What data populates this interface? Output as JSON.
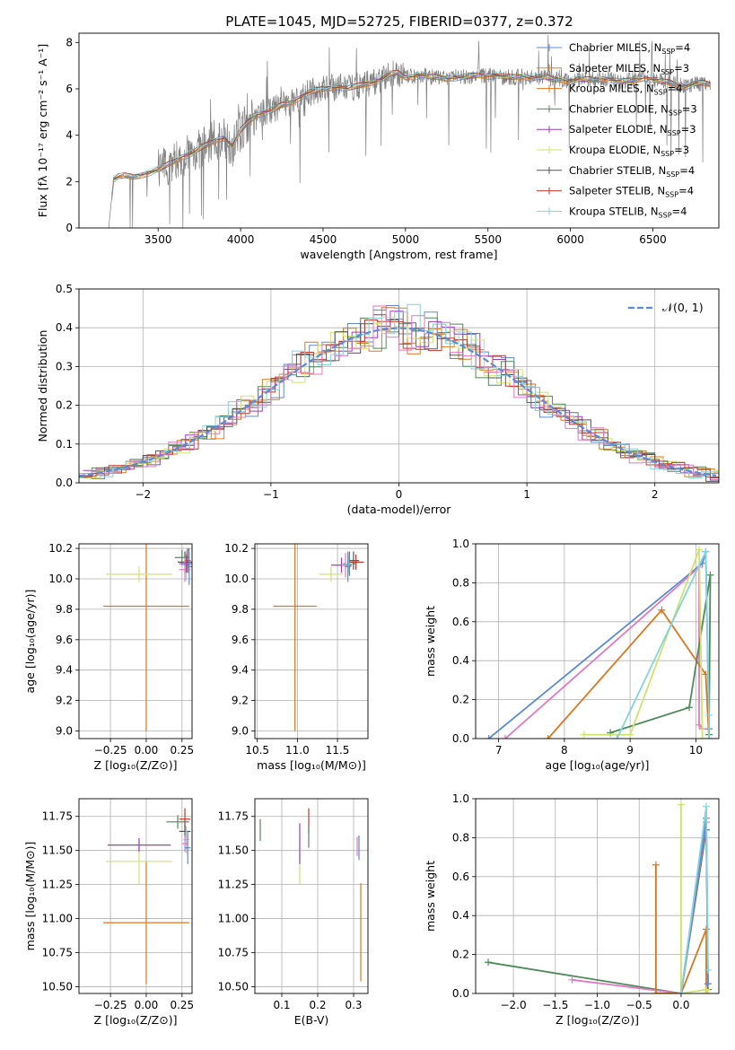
{
  "page_title": "PLATE=1045, MJD=52725, FIBERID=0377, z=0.372",
  "colors": {
    "spectrum": "#808080",
    "chabrier_miles": "#5b8bd6",
    "salpeter_miles": "#e67e22",
    "kroupa_miles": "#e0741a",
    "chabrier_elodie": "#4e8a5a",
    "salpeter_elodie": "#9b3fbf",
    "kroupa_elodie": "#cfe36a",
    "chabrier_stelib": "#555555",
    "salpeter_stelib": "#c0392b",
    "kroupa_stelib": "#7fd4e0",
    "pink": "#e377c2",
    "normal_curve": "#5b8bd6"
  },
  "legend_entries": [
    {
      "label": "Chabrier MILES, N",
      "sub": "SSP",
      "suffix": "=4",
      "color": "#5b8bd6"
    },
    {
      "label": "Salpeter MILES, N",
      "sub": "SSP",
      "suffix": "=3",
      "color": "#e67e22"
    },
    {
      "label": "Kroupa MILES, N",
      "sub": "SSP",
      "suffix": "=4",
      "color": "#e0741a"
    },
    {
      "label": "Chabrier ELODIE, N",
      "sub": "SSP",
      "suffix": "=3",
      "color": "#4e8a5a"
    },
    {
      "label": "Salpeter ELODIE, N",
      "sub": "SSP",
      "suffix": "=3",
      "color": "#9b3fbf"
    },
    {
      "label": "Kroupa ELODIE, N",
      "sub": "SSP",
      "suffix": "=3",
      "color": "#cfe36a"
    },
    {
      "label": "Chabrier STELIB, N",
      "sub": "SSP",
      "suffix": "=4",
      "color": "#555555"
    },
    {
      "label": "Salpeter STELIB, N",
      "sub": "SSP",
      "suffix": "=4",
      "color": "#c0392b"
    },
    {
      "label": "Kroupa STELIB, N",
      "sub": "SSP",
      "suffix": "=4",
      "color": "#7fd4e0"
    }
  ],
  "chart_data": [
    {
      "id": "spectrum",
      "type": "line",
      "title": "PLATE=1045, MJD=52725, FIBERID=0377, z=0.372",
      "xlabel": "wavelength [Angstrom, rest frame]",
      "ylabel": "Flux [fλ 10⁻¹⁷ erg cm⁻² s⁻¹ A⁻¹]",
      "xlim": [
        3020,
        6900
      ],
      "ylim": [
        0,
        8.4
      ],
      "xticks": [
        3500,
        4000,
        4500,
        5000,
        5500,
        6000,
        6500
      ],
      "yticks": [
        0,
        2,
        4,
        6,
        8
      ],
      "grid": false,
      "legend": "top-right",
      "series": [
        {
          "name": "data",
          "x": [
            3200,
            3230,
            3260,
            3300,
            3350,
            3400,
            3450,
            3500,
            3550,
            3600,
            3650,
            3700,
            3750,
            3800,
            3850,
            3900,
            3950,
            4000,
            4050,
            4100,
            4150,
            4200,
            4250,
            4300,
            4350,
            4400,
            4450,
            4500,
            4550,
            4600,
            4650,
            4700,
            4750,
            4800,
            4850,
            4900,
            4950,
            5000,
            5050,
            5100,
            5150,
            5200,
            5250,
            5300,
            5350,
            5400,
            5450,
            5500,
            5550,
            5600,
            5650,
            5700,
            5750,
            5800,
            5850,
            5900,
            5950,
            6000,
            6050,
            6100,
            6150,
            6200,
            6250,
            6300,
            6350,
            6400,
            6450,
            6500,
            6550,
            6600,
            6650,
            6700,
            6750,
            6800,
            6850
          ],
          "y": [
            0,
            2.1,
            2.2,
            2.25,
            2.2,
            2.3,
            2.4,
            2.5,
            2.7,
            2.9,
            3.1,
            3.2,
            3.4,
            3.6,
            3.8,
            3.9,
            3.5,
            4.2,
            4.6,
            4.9,
            5.0,
            5.1,
            5.3,
            5.4,
            5.6,
            5.8,
            5.9,
            6.0,
            6.05,
            6.1,
            6.0,
            6.1,
            6.2,
            6.3,
            6.4,
            6.6,
            6.7,
            6.5,
            6.55,
            6.6,
            6.5,
            6.5,
            6.45,
            6.5,
            6.5,
            6.55,
            6.6,
            6.55,
            6.6,
            6.5,
            6.5,
            6.55,
            6.5,
            6.5,
            6.5,
            6.4,
            6.4,
            6.35,
            6.4,
            6.4,
            6.4,
            6.45,
            6.4,
            6.3,
            6.35,
            6.4,
            6.5,
            6.4,
            6.3,
            6.3,
            6.2,
            6.1,
            6.2,
            6.25,
            6.2
          ]
        }
      ]
    },
    {
      "id": "residuals",
      "type": "line",
      "xlabel": "(data-model)/error",
      "ylabel": "Normed distribution",
      "xlim": [
        -2.5,
        2.5
      ],
      "ylim": [
        0,
        0.5
      ],
      "xticks": [
        -2,
        -1,
        0,
        1,
        2
      ],
      "yticks": [
        0.0,
        0.1,
        0.2,
        0.3,
        0.4,
        0.5
      ],
      "grid": true,
      "legend": "top-right",
      "series": [
        {
          "name": "𝒩(0, 1)",
          "dist": "normal",
          "mu": 0,
          "sigma": 1
        }
      ]
    },
    {
      "id": "age_vs_Z",
      "type": "scatter",
      "xlabel": "Z [log₁₀(Z/Z⊙)]",
      "ylabel": "age  [log₁₀(age/yr)]",
      "xlim": [
        -0.47,
        0.32
      ],
      "ylim": [
        8.95,
        10.23
      ],
      "xticks": [
        -0.25,
        0.0,
        0.25
      ],
      "yticks": [
        9.0,
        9.2,
        9.4,
        9.6,
        9.8,
        10.0,
        10.2
      ],
      "grid": true,
      "points": [
        {
          "x": 0.0,
          "y": 9.82,
          "xerr": 0.3,
          "yerr": 0.82,
          "color": "#e0741a"
        },
        {
          "x": -0.05,
          "y": 10.03,
          "xerr": 0.23,
          "yerr": 0.05,
          "color": "#cfe36a"
        },
        {
          "x": 0.25,
          "y": 10.14,
          "xerr": 0.05,
          "yerr": 0.05,
          "color": "#4e8a5a"
        },
        {
          "x": 0.27,
          "y": 10.11,
          "xerr": 0.05,
          "yerr": 0.07,
          "color": "#555555"
        },
        {
          "x": 0.28,
          "y": 10.09,
          "xerr": 0.03,
          "yerr": 0.1,
          "color": "#7fd4e0"
        },
        {
          "x": 0.29,
          "y": 10.12,
          "xerr": 0.02,
          "yerr": 0.08,
          "color": "#c0392b"
        },
        {
          "x": 0.27,
          "y": 10.06,
          "xerr": 0.04,
          "yerr": 0.08,
          "color": "#e377c2"
        },
        {
          "x": 0.28,
          "y": 10.1,
          "xerr": 0.05,
          "yerr": 0.06,
          "color": "#9b3fbf"
        },
        {
          "x": 0.3,
          "y": 10.08,
          "xerr": 0.02,
          "yerr": 0.12,
          "color": "#5b8bd6"
        }
      ]
    },
    {
      "id": "age_vs_mass",
      "type": "scatter",
      "xlabel": "mass [log₁₀(M/M⊙)]",
      "ylabel": "",
      "xlim": [
        10.47,
        11.88
      ],
      "ylim": [
        8.95,
        10.23
      ],
      "xticks": [
        10.5,
        11.0,
        11.5
      ],
      "yticks": [
        9.0,
        9.2,
        9.4,
        9.6,
        9.8,
        10.0,
        10.2
      ],
      "grid": true,
      "points": [
        {
          "x": 10.97,
          "y": 9.82,
          "xerr": 0.27,
          "yerr": 0.82,
          "color": "#e0741a"
        },
        {
          "x": 11.42,
          "y": 10.03,
          "xerr": 0.15,
          "yerr": 0.05,
          "color": "#cfe36a"
        },
        {
          "x": 11.55,
          "y": 10.09,
          "xerr": 0.13,
          "yerr": 0.05,
          "color": "#9b3fbf"
        },
        {
          "x": 11.65,
          "y": 10.1,
          "xerr": 0.08,
          "yerr": 0.08,
          "color": "#4e8a5a"
        },
        {
          "x": 11.7,
          "y": 10.12,
          "xerr": 0.07,
          "yerr": 0.06,
          "color": "#555555"
        },
        {
          "x": 11.73,
          "y": 10.11,
          "xerr": 0.1,
          "yerr": 0.05,
          "color": "#c0392b"
        },
        {
          "x": 11.6,
          "y": 10.09,
          "xerr": 0.05,
          "yerr": 0.08,
          "color": "#e377c2"
        },
        {
          "x": 11.64,
          "y": 10.1,
          "xerr": 0.05,
          "yerr": 0.06,
          "color": "#7fd4e0"
        },
        {
          "x": 11.63,
          "y": 10.08,
          "xerr": 0.04,
          "yerr": 0.1,
          "color": "#5b8bd6"
        }
      ]
    },
    {
      "id": "weight_vs_age",
      "type": "line",
      "xlabel": "age  [log₁₀(age/yr)]",
      "ylabel": "mass weight",
      "xlim": [
        6.65,
        10.35
      ],
      "ylim": [
        0,
        1.0
      ],
      "xticks": [
        7,
        8,
        9,
        10
      ],
      "yticks": [
        0.0,
        0.2,
        0.4,
        0.6,
        0.8,
        1.0
      ],
      "grid": true,
      "series": [
        {
          "color": "#5b8bd6",
          "x": [
            6.85,
            10.1,
            10.15,
            10.2
          ],
          "y": [
            0.0,
            0.9,
            0.96,
            0.05
          ]
        },
        {
          "color": "#e377c2",
          "x": [
            7.1,
            10.05,
            10.05,
            10.1
          ],
          "y": [
            0.0,
            0.88,
            0.07,
            0.05
          ]
        },
        {
          "color": "#e0741a",
          "x": [
            7.75,
            9.48,
            10.15,
            10.2
          ],
          "y": [
            0.0,
            0.66,
            0.33,
            0.0
          ]
        },
        {
          "color": "#4e8a5a",
          "x": [
            8.7,
            9.9,
            10.22,
            10.2
          ],
          "y": [
            0.03,
            0.16,
            0.84,
            0.02
          ]
        },
        {
          "color": "#cfe36a",
          "x": [
            8.3,
            9.0,
            10.05,
            10.1
          ],
          "y": [
            0.02,
            0.02,
            0.97,
            0.0
          ]
        },
        {
          "color": "#7fd4e0",
          "x": [
            8.8,
            10.15,
            10.2,
            10.2
          ],
          "y": [
            0.0,
            0.96,
            0.12,
            0.0
          ]
        }
      ]
    },
    {
      "id": "mass_vs_Z",
      "type": "scatter",
      "xlabel": "Z [log₁₀(Z/Z⊙)]",
      "ylabel": "mass [log₁₀(M/M⊙)]",
      "xlim": [
        -0.47,
        0.32
      ],
      "ylim": [
        10.45,
        11.88
      ],
      "xticks": [
        -0.25,
        0.0,
        0.25
      ],
      "yticks": [
        10.5,
        10.75,
        11.0,
        11.25,
        11.5,
        11.75
      ],
      "grid": true,
      "points": [
        {
          "x": 0.0,
          "y": 10.97,
          "xerr": 0.3,
          "yerr": 0.45,
          "color": "#e0741a"
        },
        {
          "x": -0.05,
          "y": 11.42,
          "xerr": 0.23,
          "yerr": 0.17,
          "color": "#cfe36a"
        },
        {
          "x": -0.05,
          "y": 11.54,
          "xerr": 0.22,
          "yerr": 0.05,
          "color": "#9b3fbf"
        },
        {
          "x": 0.22,
          "y": 11.71,
          "xerr": 0.08,
          "yerr": 0.05,
          "color": "#4e8a5a"
        },
        {
          "x": 0.27,
          "y": 11.73,
          "xerr": 0.04,
          "yerr": 0.08,
          "color": "#c0392b"
        },
        {
          "x": 0.27,
          "y": 11.64,
          "xerr": 0.04,
          "yerr": 0.05,
          "color": "#555555"
        },
        {
          "x": 0.28,
          "y": 11.58,
          "xerr": 0.02,
          "yerr": 0.1,
          "color": "#7fd4e0"
        },
        {
          "x": 0.27,
          "y": 11.55,
          "xerr": 0.02,
          "yerr": 0.06,
          "color": "#e377c2"
        },
        {
          "x": 0.29,
          "y": 11.52,
          "xerr": 0.02,
          "yerr": 0.12,
          "color": "#5b8bd6"
        }
      ]
    },
    {
      "id": "mass_vs_ebv",
      "type": "scatter",
      "xlabel": "E(B-V)",
      "ylabel": "",
      "xlim": [
        0.025,
        0.34
      ],
      "ylim": [
        10.45,
        11.88
      ],
      "xticks": [
        0.1,
        0.2,
        0.3
      ],
      "yticks": [
        10.5,
        10.75,
        11.0,
        11.25,
        11.5,
        11.75
      ],
      "grid": true,
      "points": [
        {
          "x": 0.04,
          "y": 11.65,
          "yerr": 0.08,
          "color": "#4e8a5a"
        },
        {
          "x": 0.15,
          "y": 11.42,
          "yerr": 0.17,
          "color": "#cfe36a"
        },
        {
          "x": 0.15,
          "y": 11.55,
          "yerr": 0.15,
          "color": "#9b3fbf"
        },
        {
          "x": 0.175,
          "y": 11.72,
          "yerr": 0.09,
          "color": "#c0392b"
        },
        {
          "x": 0.175,
          "y": 11.6,
          "yerr": 0.08,
          "color": "#4e8a5a"
        },
        {
          "x": 0.31,
          "y": 11.53,
          "yerr": 0.07,
          "color": "#e377c2"
        },
        {
          "x": 0.315,
          "y": 11.52,
          "yerr": 0.09,
          "color": "#5b8bd6"
        },
        {
          "x": 0.32,
          "y": 10.9,
          "yerr": 0.36,
          "color": "#e0741a"
        }
      ]
    },
    {
      "id": "weight_vs_Z",
      "type": "line",
      "xlabel": "Z [log₁₀(Z/Z⊙)]",
      "ylabel": "mass weight",
      "xlim": [
        -2.45,
        0.45
      ],
      "ylim": [
        0,
        1.0
      ],
      "xticks": [
        -2.0,
        -1.5,
        -1.0,
        -0.5,
        0.0
      ],
      "yticks": [
        0.0,
        0.2,
        0.4,
        0.6,
        0.8,
        1.0
      ],
      "grid": true,
      "series": [
        {
          "color": "#4e8a5a",
          "x": [
            -2.3,
            0.0,
            0.3,
            0.32
          ],
          "y": [
            0.16,
            0.0,
            0.84,
            0.02
          ]
        },
        {
          "color": "#e377c2",
          "x": [
            -1.3,
            0.0,
            0.3,
            0.32
          ],
          "y": [
            0.07,
            0.0,
            0.88,
            0.05
          ]
        },
        {
          "color": "#e0741a",
          "x": [
            -0.3,
            -0.3,
            0.0,
            0.3,
            0.3
          ],
          "y": [
            0.66,
            0.0,
            0.0,
            0.33,
            0.0
          ]
        },
        {
          "color": "#cfe36a",
          "x": [
            0.0,
            0.0,
            0.3,
            0.32
          ],
          "y": [
            0.97,
            0.0,
            0.02,
            0.0
          ]
        },
        {
          "color": "#5b8bd6",
          "x": [
            0.0,
            0.3,
            0.32
          ],
          "y": [
            0.0,
            0.9,
            0.05
          ]
        },
        {
          "color": "#7fd4e0",
          "x": [
            0.0,
            0.3,
            0.32
          ],
          "y": [
            0.0,
            0.96,
            0.12
          ]
        }
      ]
    }
  ]
}
